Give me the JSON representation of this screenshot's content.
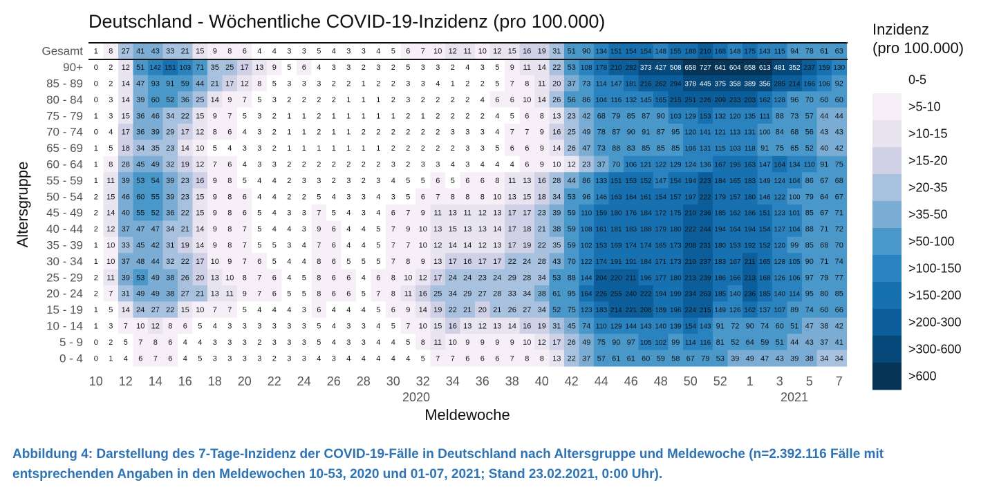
{
  "chart_data": {
    "type": "heatmap",
    "title": "Deutschland - Wöchentliche COVID-19-Inzidenz (pro 100.000)",
    "xlabel": "Meldewoche",
    "ylabel": "Altersgruppe",
    "x_tick_labels": [
      "10",
      "12",
      "14",
      "16",
      "18",
      "20",
      "22",
      "24",
      "26",
      "28",
      "30",
      "32",
      "34",
      "36",
      "38",
      "40",
      "42",
      "44",
      "46",
      "48",
      "50",
      "52",
      "1",
      "3",
      "5",
      "7"
    ],
    "x_year_labels": [
      "2020",
      "2021"
    ],
    "weeks": [
      10,
      11,
      12,
      13,
      14,
      15,
      16,
      17,
      18,
      19,
      20,
      21,
      22,
      23,
      24,
      25,
      26,
      27,
      28,
      29,
      30,
      31,
      32,
      33,
      34,
      35,
      36,
      37,
      38,
      39,
      40,
      41,
      42,
      43,
      44,
      45,
      46,
      47,
      48,
      49,
      50,
      51,
      52,
      53,
      1,
      2,
      3,
      4,
      5,
      6,
      7
    ],
    "legend": {
      "title_line1": "Inzidenz",
      "title_line2": "(pro 100.000)",
      "labels": [
        "0-5",
        ">5-10",
        ">10-15",
        ">15-20",
        ">20-35",
        ">35-50",
        ">50-100",
        ">100-150",
        ">150-200",
        ">200-300",
        ">300-600",
        ">600"
      ],
      "colors": [
        "#ffffff",
        "#f6eff7",
        "#e8e5f1",
        "#d0d1e6",
        "#a8c1de",
        "#7badd4",
        "#4a98c9",
        "#2a82bf",
        "#1771b0",
        "#0c5e9a",
        "#07487a",
        "#053457"
      ],
      "thresholds": [
        5,
        10,
        15,
        20,
        35,
        50,
        100,
        150,
        200,
        300,
        600
      ]
    },
    "rows": [
      {
        "label": "Gesamt",
        "values": [
          1,
          8,
          27,
          41,
          43,
          33,
          21,
          15,
          9,
          8,
          6,
          4,
          4,
          3,
          3,
          5,
          4,
          3,
          3,
          4,
          5,
          6,
          7,
          10,
          12,
          11,
          10,
          12,
          15,
          16,
          19,
          31,
          51,
          90,
          134,
          151,
          154,
          154,
          148,
          155,
          188,
          210,
          168,
          148,
          175,
          143,
          115,
          94,
          78,
          61,
          63
        ]
      },
      {
        "label": "90+",
        "values": [
          0,
          2,
          12,
          51,
          142,
          151,
          103,
          71,
          35,
          25,
          17,
          13,
          9,
          5,
          6,
          4,
          3,
          3,
          2,
          3,
          2,
          5,
          3,
          3,
          2,
          4,
          3,
          5,
          9,
          11,
          14,
          22,
          53,
          108,
          178,
          210,
          282,
          373,
          427,
          508,
          658,
          727,
          641,
          604,
          658,
          613,
          481,
          352,
          237,
          159,
          130
        ]
      },
      {
        "label": "85 - 89",
        "values": [
          0,
          2,
          14,
          47,
          93,
          91,
          59,
          44,
          21,
          17,
          12,
          8,
          5,
          3,
          3,
          3,
          2,
          2,
          1,
          2,
          2,
          3,
          3,
          4,
          1,
          2,
          2,
          5,
          7,
          8,
          11,
          20,
          37,
          73,
          114,
          147,
          181,
          216,
          262,
          294,
          378,
          445,
          375,
          358,
          389,
          356,
          285,
          214,
          166,
          106,
          92
        ]
      },
      {
        "label": "80 - 84",
        "values": [
          0,
          3,
          14,
          39,
          60,
          52,
          36,
          25,
          14,
          9,
          7,
          5,
          3,
          2,
          2,
          2,
          2,
          1,
          1,
          1,
          2,
          3,
          2,
          2,
          2,
          2,
          4,
          6,
          6,
          10,
          14,
          26,
          56,
          86,
          104,
          116,
          132,
          145,
          165,
          215,
          251,
          226,
          209,
          233,
          203,
          162,
          128,
          96,
          70,
          60,
          60
        ]
      },
      {
        "label": "75 - 79",
        "values": [
          1,
          3,
          15,
          36,
          46,
          34,
          22,
          15,
          9,
          7,
          5,
          3,
          2,
          1,
          1,
          2,
          1,
          1,
          1,
          1,
          1,
          2,
          1,
          2,
          2,
          2,
          2,
          4,
          5,
          6,
          8,
          13,
          23,
          42,
          68,
          79,
          85,
          87,
          90,
          103,
          129,
          153,
          132,
          120,
          135,
          111,
          88,
          73,
          57,
          44,
          44
        ]
      },
      {
        "label": "70 - 74",
        "values": [
          0,
          4,
          17,
          36,
          39,
          29,
          17,
          12,
          8,
          6,
          4,
          3,
          2,
          1,
          1,
          2,
          1,
          1,
          2,
          2,
          2,
          2,
          2,
          2,
          3,
          3,
          3,
          4,
          7,
          7,
          9,
          16,
          25,
          49,
          78,
          87,
          90,
          91,
          87,
          95,
          120,
          141,
          121,
          113,
          131,
          100,
          84,
          68,
          56,
          43,
          43
        ]
      },
      {
        "label": "65 - 69",
        "values": [
          1,
          5,
          18,
          34,
          35,
          23,
          14,
          10,
          5,
          4,
          3,
          3,
          2,
          1,
          1,
          1,
          1,
          1,
          1,
          1,
          2,
          2,
          2,
          2,
          2,
          3,
          3,
          5,
          6,
          6,
          9,
          14,
          26,
          47,
          73,
          88,
          83,
          85,
          85,
          85,
          106,
          131,
          115,
          103,
          118,
          91,
          75,
          65,
          52,
          40,
          42
        ]
      },
      {
        "label": "60 - 64",
        "values": [
          1,
          8,
          28,
          45,
          49,
          32,
          19,
          12,
          7,
          6,
          4,
          3,
          3,
          2,
          2,
          2,
          2,
          2,
          2,
          2,
          3,
          2,
          3,
          3,
          4,
          3,
          4,
          4,
          4,
          6,
          9,
          10,
          12,
          23,
          37,
          70,
          106,
          121,
          122,
          129,
          124,
          136,
          167,
          195,
          163,
          147,
          164,
          134,
          110,
          91,
          75
        ]
      },
      {
        "label": "55 - 59",
        "values": [
          1,
          11,
          39,
          53,
          54,
          39,
          23,
          16,
          9,
          8,
          5,
          4,
          4,
          2,
          3,
          3,
          2,
          3,
          2,
          3,
          4,
          5,
          5,
          6,
          5,
          6,
          6,
          8,
          11,
          13,
          16,
          28,
          44,
          86,
          133,
          151,
          153,
          152,
          147,
          154,
          194,
          223,
          184,
          165,
          183,
          149,
          124,
          104,
          86,
          67,
          68
        ]
      },
      {
        "label": "50 - 54",
        "values": [
          2,
          15,
          46,
          60,
          55,
          39,
          23,
          15,
          9,
          8,
          6,
          4,
          4,
          2,
          2,
          5,
          4,
          3,
          3,
          4,
          3,
          5,
          6,
          7,
          8,
          8,
          8,
          10,
          13,
          15,
          18,
          34,
          53,
          96,
          146,
          163,
          164,
          161,
          154,
          157,
          197,
          222,
          179,
          157,
          180,
          146,
          122,
          100,
          79,
          64,
          67
        ]
      },
      {
        "label": "45 - 49",
        "values": [
          2,
          14,
          40,
          55,
          52,
          36,
          22,
          15,
          9,
          8,
          6,
          5,
          4,
          3,
          3,
          7,
          5,
          4,
          3,
          4,
          6,
          7,
          9,
          11,
          13,
          11,
          12,
          13,
          17,
          17,
          23,
          39,
          59,
          110,
          159,
          180,
          176,
          184,
          172,
          175,
          210,
          236,
          185,
          162,
          186,
          151,
          123,
          101,
          85,
          67,
          71
        ]
      },
      {
        "label": "40 - 44",
        "values": [
          2,
          12,
          37,
          47,
          47,
          34,
          21,
          14,
          9,
          8,
          7,
          5,
          4,
          4,
          3,
          9,
          6,
          4,
          4,
          5,
          7,
          9,
          10,
          13,
          15,
          13,
          13,
          14,
          17,
          18,
          21,
          38,
          59,
          108,
          161,
          181,
          183,
          188,
          179,
          180,
          222,
          244,
          194,
          164,
          194,
          154,
          127,
          104,
          88,
          71,
          72
        ]
      },
      {
        "label": "35 - 39",
        "values": [
          1,
          10,
          33,
          45,
          42,
          31,
          19,
          14,
          9,
          8,
          7,
          5,
          5,
          3,
          4,
          7,
          6,
          4,
          4,
          5,
          7,
          7,
          10,
          12,
          14,
          14,
          12,
          13,
          17,
          19,
          22,
          35,
          59,
          102,
          153,
          169,
          174,
          174,
          165,
          173,
          208,
          231,
          180,
          153,
          192,
          152,
          120,
          99,
          85,
          68,
          70
        ]
      },
      {
        "label": "30 - 34",
        "values": [
          1,
          10,
          37,
          48,
          44,
          32,
          22,
          17,
          10,
          9,
          7,
          6,
          5,
          4,
          4,
          8,
          6,
          5,
          5,
          5,
          7,
          8,
          9,
          13,
          17,
          16,
          17,
          17,
          22,
          24,
          28,
          43,
          70,
          122,
          174,
          191,
          191,
          184,
          171,
          173,
          210,
          237,
          183,
          167,
          211,
          165,
          128,
          105,
          90,
          71,
          74
        ]
      },
      {
        "label": "25 - 29",
        "values": [
          2,
          11,
          39,
          53,
          49,
          38,
          26,
          20,
          13,
          10,
          8,
          7,
          6,
          4,
          5,
          8,
          6,
          6,
          4,
          6,
          8,
          10,
          12,
          17,
          24,
          24,
          23,
          24,
          29,
          28,
          34,
          53,
          88,
          144,
          204,
          220,
          211,
          196,
          177,
          180,
          213,
          239,
          186,
          166,
          213,
          168,
          126,
          106,
          97,
          79,
          77
        ]
      },
      {
        "label": "20 - 24",
        "values": [
          2,
          7,
          31,
          49,
          49,
          38,
          27,
          21,
          13,
          11,
          9,
          7,
          6,
          5,
          5,
          8,
          6,
          6,
          5,
          7,
          8,
          11,
          16,
          25,
          34,
          29,
          27,
          28,
          33,
          34,
          38,
          61,
          95,
          164,
          226,
          255,
          240,
          222,
          194,
          199,
          234,
          263,
          185,
          140,
          236,
          185,
          140,
          114,
          95,
          80,
          85
        ]
      },
      {
        "label": "15 - 19",
        "values": [
          1,
          5,
          14,
          24,
          27,
          22,
          15,
          10,
          7,
          7,
          5,
          4,
          4,
          4,
          3,
          6,
          4,
          4,
          4,
          5,
          6,
          9,
          14,
          19,
          22,
          21,
          20,
          21,
          26,
          27,
          34,
          52,
          75,
          123,
          183,
          214,
          221,
          208,
          189,
          196,
          224,
          215,
          149,
          126,
          162,
          137,
          107,
          89,
          74,
          60,
          66
        ]
      },
      {
        "label": "10 - 14",
        "values": [
          1,
          3,
          7,
          10,
          12,
          8,
          6,
          5,
          4,
          3,
          3,
          3,
          3,
          3,
          3,
          5,
          4,
          3,
          3,
          4,
          5,
          7,
          10,
          15,
          16,
          13,
          12,
          13,
          14,
          16,
          19,
          31,
          45,
          74,
          110,
          129,
          144,
          143,
          140,
          139,
          154,
          143,
          91,
          72,
          90,
          74,
          60,
          51,
          47,
          38,
          42
        ]
      },
      {
        "label": "5 - 9",
        "values": [
          0,
          2,
          5,
          7,
          8,
          6,
          4,
          4,
          3,
          3,
          3,
          2,
          3,
          3,
          3,
          5,
          4,
          3,
          3,
          4,
          4,
          5,
          8,
          11,
          10,
          9,
          9,
          9,
          9,
          10,
          12,
          17,
          26,
          49,
          75,
          90,
          97,
          105,
          102,
          99,
          114,
          116,
          81,
          52,
          64,
          59,
          51,
          44,
          43,
          37,
          41
        ]
      },
      {
        "label": "0 - 4",
        "values": [
          0,
          1,
          4,
          6,
          7,
          6,
          4,
          5,
          3,
          3,
          3,
          3,
          2,
          3,
          3,
          4,
          3,
          4,
          4,
          4,
          4,
          4,
          5,
          7,
          7,
          6,
          6,
          6,
          7,
          8,
          8,
          13,
          22,
          37,
          57,
          61,
          61,
          60,
          59,
          58,
          67,
          79,
          53,
          39,
          49,
          47,
          43,
          39,
          38,
          34,
          34
        ]
      }
    ]
  },
  "caption": {
    "line1": "Abbildung 4: Darstellung des 7-Tage-Inzidenz der COVID-19-Fälle in Deutschland nach Altersgruppe und Meldewoche (n=2.392.116 Fälle mit",
    "line2": "entsprechenden Angaben in den Meldewochen 10-53, 2020 und 01-07, 2021; Stand 23.02.2021, 0:00 Uhr)."
  }
}
